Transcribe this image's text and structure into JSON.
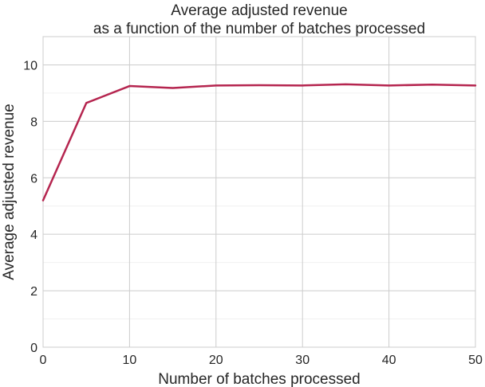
{
  "chart_data": {
    "type": "line",
    "title": [
      "Average adjusted revenue",
      "as a function of the number of batches processed"
    ],
    "xlabel": "Number of batches processed",
    "ylabel": "Average adjusted revenue",
    "xlim": [
      0,
      50
    ],
    "ylim": [
      0,
      11
    ],
    "x_ticks": [
      0,
      10,
      20,
      30,
      40,
      50
    ],
    "y_ticks": [
      0,
      2,
      4,
      6,
      8,
      10
    ],
    "grid": true,
    "legend": "none",
    "series": [
      {
        "color": "#b5254f",
        "x": [
          0,
          5,
          10,
          15,
          20,
          25,
          30,
          35,
          40,
          45,
          50
        ],
        "y": [
          5.2,
          8.65,
          9.25,
          9.18,
          9.27,
          9.28,
          9.27,
          9.31,
          9.27,
          9.3,
          9.27
        ]
      }
    ]
  }
}
